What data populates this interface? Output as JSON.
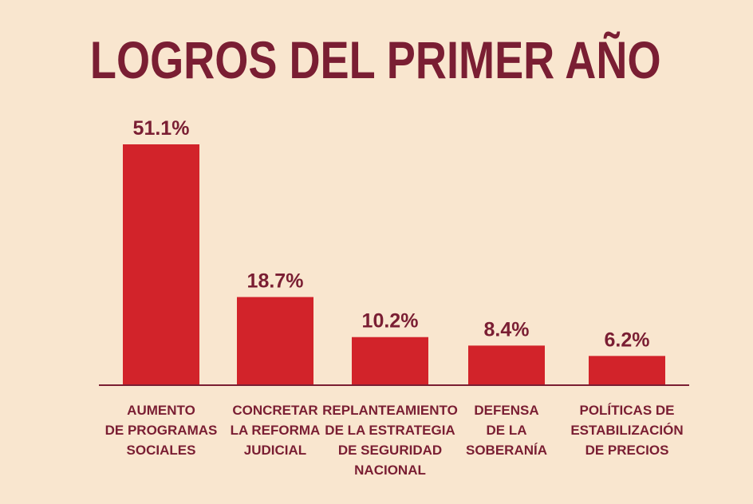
{
  "chart_data": {
    "type": "bar",
    "title": "LOGROS DEL PRIMER AÑO",
    "categories": [
      [
        "AUMENTO",
        "DE PROGRAMAS",
        "SOCIALES"
      ],
      [
        "CONCRETAR",
        "LA REFORMA",
        "JUDICIAL"
      ],
      [
        "REPLANTEAMIENTO",
        "DE LA ESTRATEGIA",
        "DE SEGURIDAD",
        "NACIONAL"
      ],
      [
        "DEFENSA",
        "DE LA",
        "SOBERANÍA"
      ],
      [
        "POLÍTICAS DE",
        "ESTABILIZACIÓN",
        "DE PRECIOS"
      ]
    ],
    "values": [
      51.1,
      18.7,
      10.2,
      8.4,
      6.2
    ],
    "value_labels": [
      "51.1%",
      "18.7%",
      "10.2%",
      "8.4%",
      "6.2%"
    ],
    "unit": "%",
    "ylim": [
      0,
      51.1
    ],
    "grid": false,
    "legend": "none",
    "colors": {
      "background": "#f9e6cf",
      "bar": "#d2232a",
      "text": "#7a1e33"
    }
  }
}
